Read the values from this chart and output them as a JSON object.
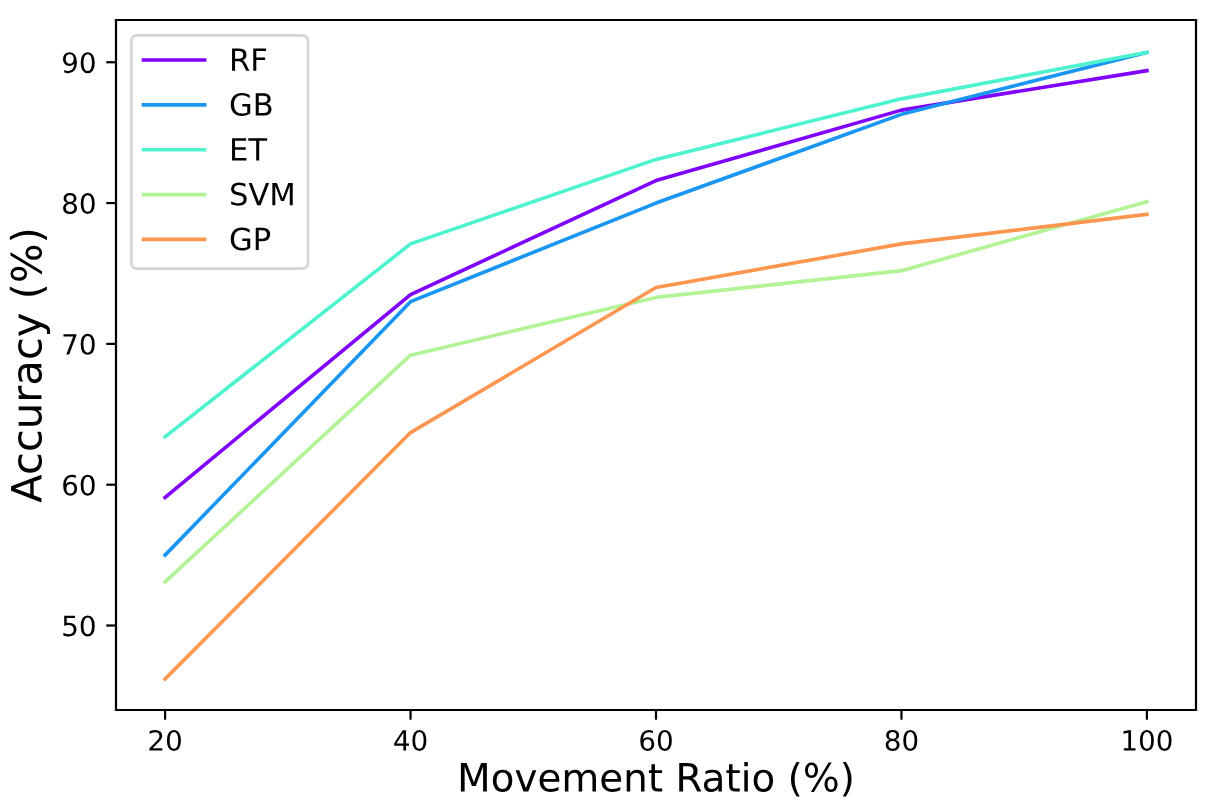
{
  "chart_data": {
    "type": "line",
    "xlabel": "Movement Ratio (%)",
    "ylabel": "Accuracy (%)",
    "x": [
      20,
      40,
      60,
      80,
      100
    ],
    "series": [
      {
        "name": "RF",
        "color": "#8000ff",
        "values": [
          59.1,
          73.5,
          81.6,
          86.6,
          89.4
        ]
      },
      {
        "name": "GB",
        "color": "#1996f3",
        "values": [
          55.0,
          73.0,
          80.0,
          86.3,
          90.7
        ]
      },
      {
        "name": "ET",
        "color": "#4df3ce",
        "values": [
          63.4,
          77.1,
          83.1,
          87.4,
          90.7
        ]
      },
      {
        "name": "SVM",
        "color": "#b2f396",
        "values": [
          53.1,
          69.2,
          73.3,
          75.2,
          80.1
        ]
      },
      {
        "name": "GP",
        "color": "#ff964f",
        "values": [
          46.2,
          63.7,
          74.0,
          77.1,
          79.2
        ]
      }
    ],
    "xlim": [
      16,
      104
    ],
    "ylim": [
      44,
      93
    ],
    "xticks": [
      20,
      40,
      60,
      80,
      100
    ],
    "yticks": [
      50,
      60,
      70,
      80,
      90
    ],
    "grid": false,
    "legend": "top left"
  }
}
